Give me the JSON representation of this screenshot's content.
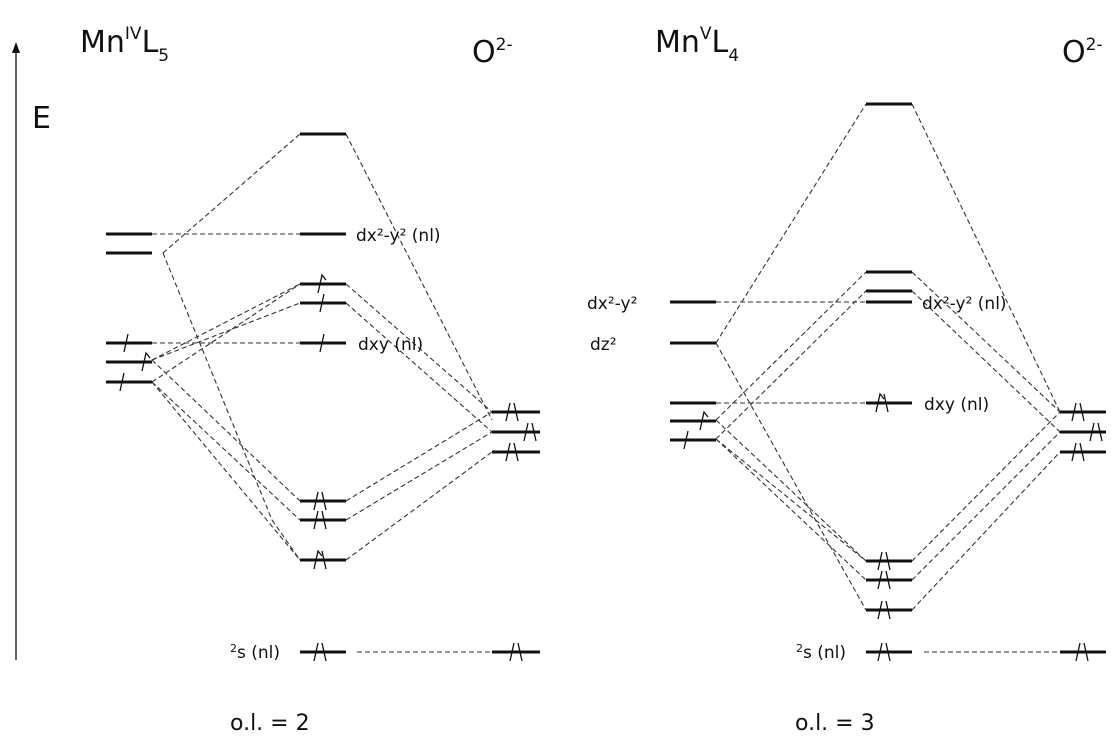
{
  "energy_axis_label": "E",
  "left": {
    "title": {
      "base": "Mn",
      "sup": "IV",
      "mid": "L",
      "sub": "5"
    },
    "ligand": {
      "base": "O",
      "sup": "2-"
    },
    "labels": {
      "upper": "dx²-y² (nl)",
      "mid": "dxy (nl)",
      "s_sup": "2",
      "s": "s (nl)"
    },
    "bond_order": "o.l. = 2"
  },
  "right": {
    "title": {
      "base": "Mn",
      "sup": "V",
      "mid": "L",
      "sub": "4"
    },
    "ligand": {
      "base": "O",
      "sup": "2-"
    },
    "labels": {
      "metal_upper": "dx²-y²",
      "metal_dz": "dz²",
      "upper": "dx²-y² (nl)",
      "mid": "dxy (nl)",
      "s_sup": "2",
      "s": "s (nl)"
    },
    "bond_order": "o.l. = 3"
  }
}
